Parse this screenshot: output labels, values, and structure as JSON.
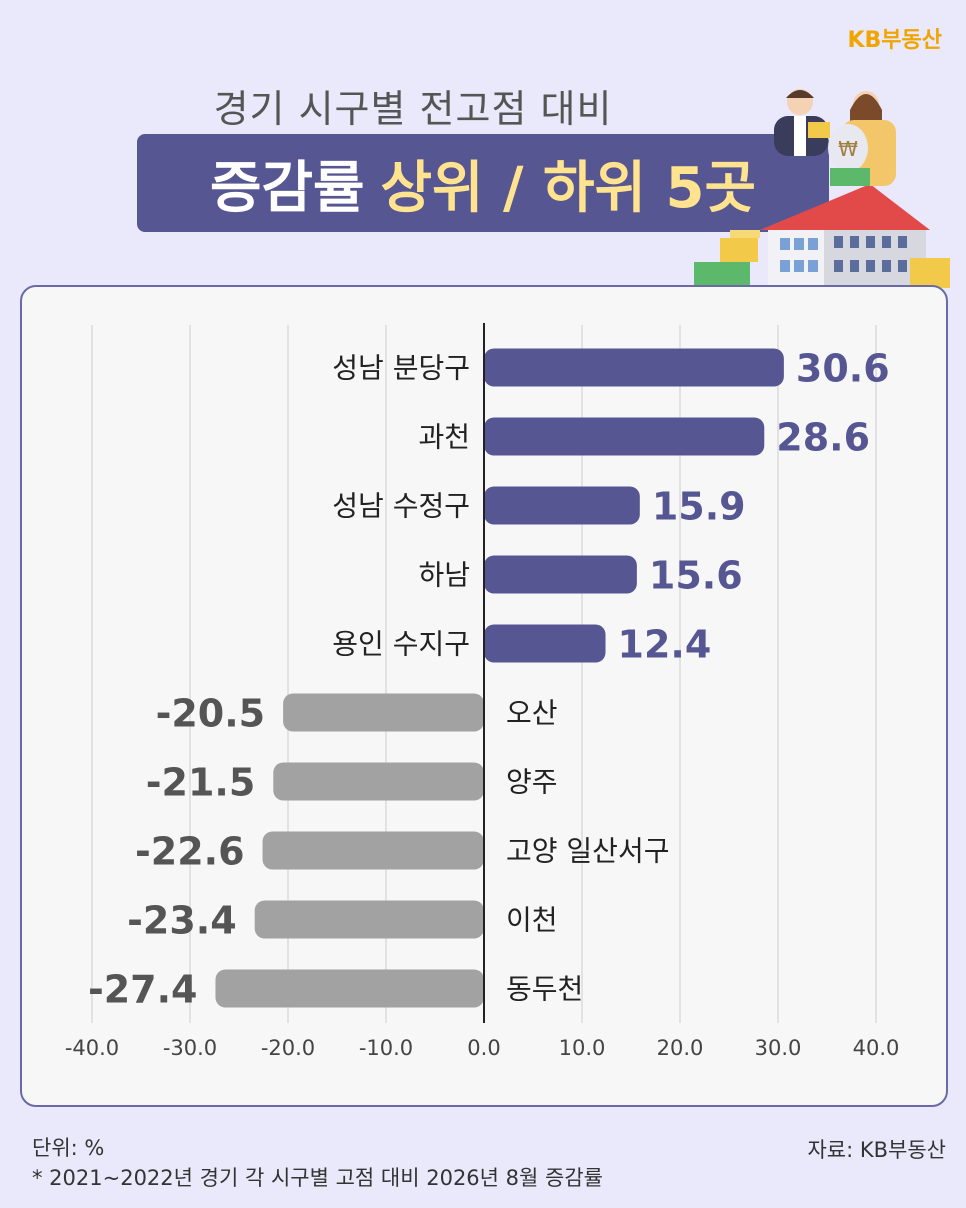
{
  "brand": "KB부동산",
  "title": {
    "line1": "경기 시구별 전고점 대비",
    "line2_a": "증감률",
    "line2_b": "상위 / 하위 5곳"
  },
  "footer": {
    "unit": "단위: %",
    "footnote": "* 2021~2022년 경기 각 시구별 고점 대비 2026년 8월 증감률",
    "source": "자료: KB부동산"
  },
  "colors": {
    "positive": "#565792",
    "negative": "#a2a2a2",
    "banner": "#565792",
    "highlight": "#ffe38e",
    "brand": "#f0a500"
  },
  "chart_data": {
    "type": "bar",
    "orientation": "horizontal",
    "categories": [
      "성남 분당구",
      "과천",
      "성남 수정구",
      "하남",
      "용인 수지구",
      "오산",
      "양주",
      "고양 일산서구",
      "이천",
      "동두천"
    ],
    "values": [
      30.6,
      28.6,
      15.9,
      15.6,
      12.4,
      -20.5,
      -21.5,
      -22.6,
      -23.4,
      -27.4
    ],
    "value_labels": [
      "30.6",
      "28.6",
      "15.9",
      "15.6",
      "12.4",
      "-20.5",
      "-21.5",
      "-22.6",
      "-23.4",
      "-27.4"
    ],
    "xlim": [
      -40,
      40
    ],
    "xticks": [
      -40,
      -30,
      -20,
      -10,
      0,
      10,
      20,
      30,
      40
    ],
    "xtick_labels": [
      "-40.0",
      "-30.0",
      "-20.0",
      "-10.0",
      "0.0",
      "10.0",
      "20.0",
      "30.0",
      "40.0"
    ],
    "grid": true
  }
}
